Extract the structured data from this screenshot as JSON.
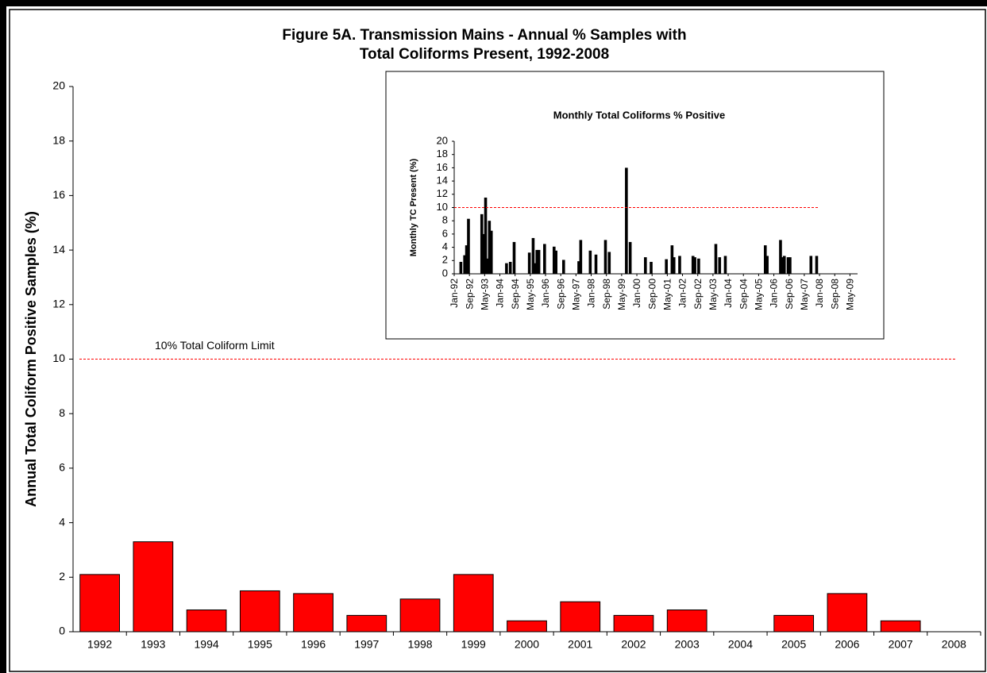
{
  "chart_data": [
    {
      "type": "bar",
      "title": [
        "Figure 5A.  Transmission Mains -  Annual % Samples with",
        "Total Coliforms Present, 1992-2008"
      ],
      "y_label": "Annual Total Coliform Positive Samples (%)",
      "categories": [
        "1992",
        "1993",
        "1994",
        "1995",
        "1996",
        "1997",
        "1998",
        "1999",
        "2000",
        "2001",
        "2002",
        "2003",
        "2004",
        "2005",
        "2006",
        "2007",
        "2008"
      ],
      "values": [
        2.1,
        3.3,
        0.8,
        1.5,
        1.4,
        0.6,
        1.2,
        2.1,
        0.4,
        1.1,
        0.6,
        0.8,
        0,
        0.6,
        1.4,
        0.4,
        0
      ],
      "color": "#ff0000",
      "ylim": [
        0,
        20
      ],
      "yticks": [
        0,
        2,
        4,
        6,
        8,
        10,
        12,
        14,
        16,
        18,
        20
      ],
      "reference_line": {
        "value": 10,
        "label": "10% Total Coliform Limit",
        "color": "#ff0000"
      }
    },
    {
      "type": "bar",
      "title": [
        "Monthly Total Coliforms % Positive"
      ],
      "y_label": "Monthly TC Present  (%)",
      "categories": [
        "Jan-92",
        null,
        null,
        null,
        null,
        null,
        null,
        null,
        "Sep-92",
        null,
        null,
        null,
        null,
        null,
        null,
        null,
        "May-93",
        null,
        null,
        null,
        null,
        null,
        null,
        null,
        "Jan-94",
        null,
        null,
        null,
        null,
        null,
        null,
        null,
        "Sep-94",
        null,
        null,
        null,
        null,
        null,
        null,
        null,
        "May-95",
        null,
        null,
        null,
        null,
        null,
        null,
        null,
        "Jan-96",
        null,
        null,
        null,
        null,
        null,
        null,
        null,
        "Sep-96",
        null,
        null,
        null,
        null,
        null,
        null,
        null,
        "May-97",
        null,
        null,
        null,
        null,
        null,
        null,
        null,
        "Jan-98",
        null,
        null,
        null,
        null,
        null,
        null,
        null,
        "Sep-98",
        null,
        null,
        null,
        null,
        null,
        null,
        null,
        "May-99",
        null,
        null,
        null,
        null,
        null,
        null,
        null,
        "Jan-00",
        null,
        null,
        null,
        null,
        null,
        null,
        null,
        "Sep-00",
        null,
        null,
        null,
        null,
        null,
        null,
        null,
        "May-01",
        null,
        null,
        null,
        null,
        null,
        null,
        null,
        "Jan-02",
        null,
        null,
        null,
        null,
        null,
        null,
        null,
        "Sep-02",
        null,
        null,
        null,
        null,
        null,
        null,
        null,
        "May-03",
        null,
        null,
        null,
        null,
        null,
        null,
        null,
        "Jan-04",
        null,
        null,
        null,
        null,
        null,
        null,
        null,
        "Sep-04",
        null,
        null,
        null,
        null,
        null,
        null,
        null,
        "May-05",
        null,
        null,
        null,
        null,
        null,
        null,
        null,
        "Jan-06",
        null,
        null,
        null,
        null,
        null,
        null,
        null,
        "Sep-06",
        null,
        null,
        null,
        null,
        null,
        null,
        null,
        "May-07",
        null,
        null,
        null,
        null,
        null,
        null,
        null,
        "Jan-08",
        null,
        null,
        null,
        null,
        null,
        null,
        null,
        "Sep-08",
        null,
        null,
        null,
        null,
        null,
        null,
        null,
        "May-09",
        null,
        null,
        null
      ],
      "values": [
        0,
        0,
        0,
        1.8,
        0,
        2.8,
        4.3,
        8.3,
        0,
        0,
        0,
        0,
        0,
        0,
        9.0,
        6.0,
        11.5,
        2.3,
        8.0,
        6.5,
        0,
        0,
        0,
        0,
        0,
        0,
        0,
        1.6,
        0,
        1.8,
        0,
        4.8,
        0,
        0,
        0,
        0,
        0,
        0,
        0,
        3.2,
        0,
        5.4,
        1.6,
        3.6,
        3.6,
        0,
        0,
        4.5,
        0,
        0,
        0,
        0,
        4.1,
        3.5,
        0,
        0,
        0,
        2.1,
        0,
        0,
        0,
        0,
        0,
        0,
        0,
        1.9,
        5.1,
        0,
        0,
        0,
        0,
        3.5,
        0,
        0,
        2.9,
        0,
        0,
        0,
        0,
        5.1,
        0,
        3.3,
        0,
        0,
        0,
        0,
        0,
        0,
        0,
        0,
        16,
        0,
        4.8,
        0,
        0,
        0,
        0,
        0,
        0,
        0,
        2.5,
        0,
        0,
        1.8,
        0,
        0,
        0,
        0,
        0,
        0,
        0,
        2.2,
        0,
        0,
        4.3,
        2.5,
        0,
        0,
        2.7,
        0,
        0,
        0,
        0,
        0,
        0,
        2.7,
        2.5,
        0,
        2.3,
        0,
        0,
        0,
        0,
        0,
        0,
        0,
        0,
        4.5,
        0,
        2.5,
        0,
        0,
        2.7,
        0,
        0,
        0,
        0,
        0,
        0,
        0,
        0,
        0,
        0,
        0,
        0,
        0,
        0,
        0,
        0,
        0,
        0,
        0,
        0,
        4.3,
        2.7,
        0,
        0,
        0,
        0,
        0,
        0,
        5.1,
        2.5,
        2.7,
        0,
        2.5,
        2.5,
        0,
        0,
        0,
        0,
        0,
        0,
        0,
        0,
        0,
        0,
        2.7,
        0,
        0,
        2.7,
        0,
        0,
        0,
        0,
        0,
        0,
        0,
        0,
        0,
        0,
        0,
        0,
        0,
        0,
        0,
        0,
        0,
        0,
        0,
        0,
        0
      ],
      "color": "#000000",
      "ylim": [
        0,
        20
      ],
      "yticks": [
        0,
        2,
        4,
        6,
        8,
        10,
        12,
        14,
        16,
        18,
        20
      ],
      "reference_line": {
        "value": 10,
        "color": "#ff0000"
      }
    }
  ]
}
